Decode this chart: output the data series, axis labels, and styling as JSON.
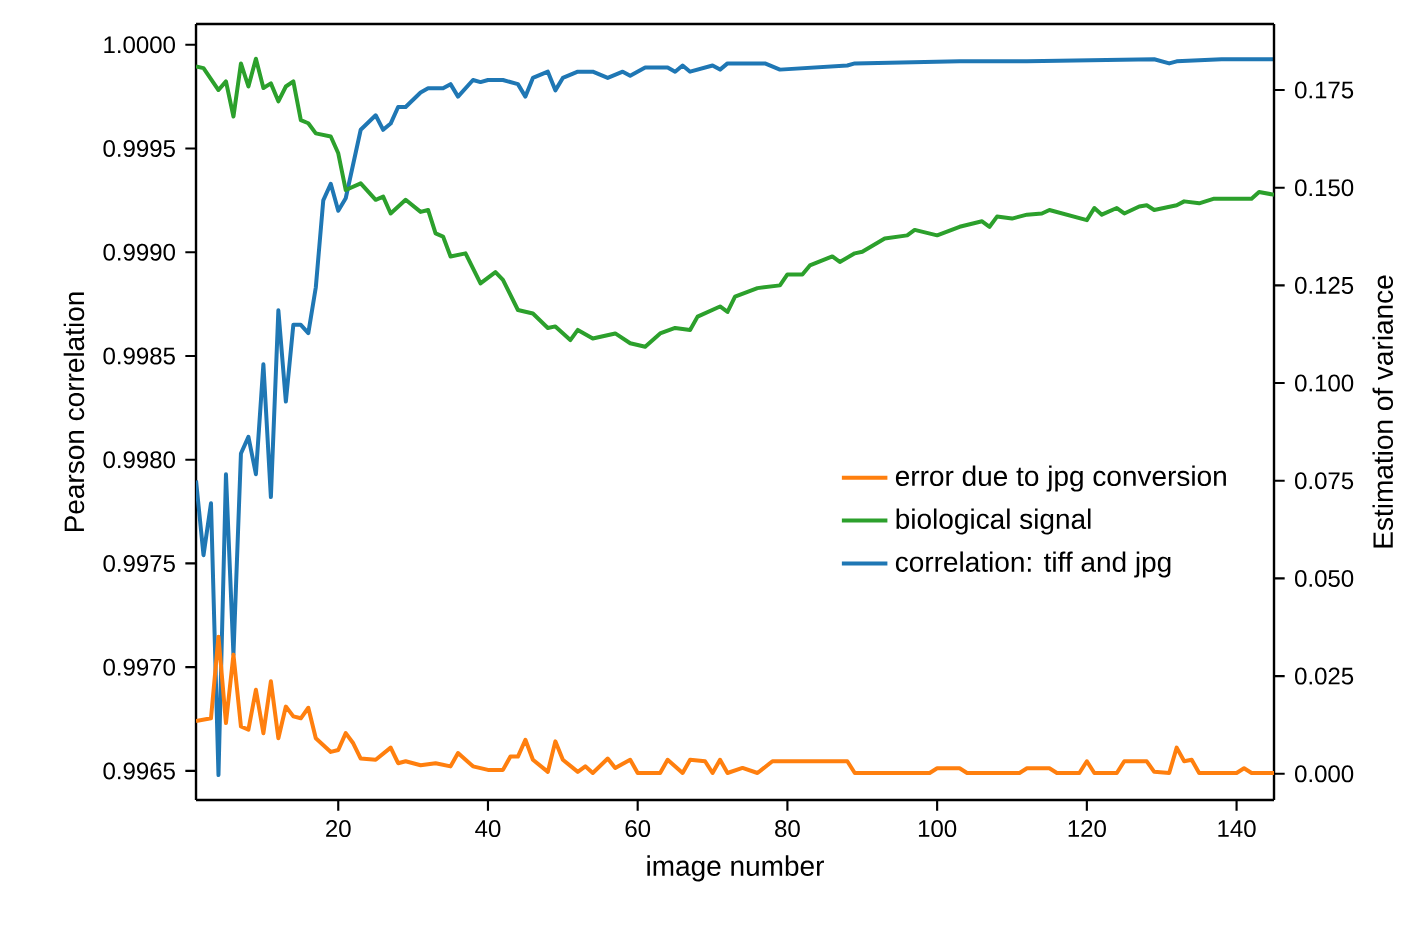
{
  "chart_data": {
    "type": "line",
    "xlabel": "image number",
    "ylabel": "Pearson correlation",
    "y2label": "Estimation of variance",
    "xlim": [
      1,
      145
    ],
    "xticks": [
      20,
      40,
      60,
      80,
      100,
      120,
      140
    ],
    "ylim": [
      0.99636,
      1.0001
    ],
    "yticks": [
      {
        "value": 0.9965,
        "label": "0.9965"
      },
      {
        "value": 0.997,
        "label": "0.9970"
      },
      {
        "value": 0.9975,
        "label": "0.9975"
      },
      {
        "value": 0.998,
        "label": "0.9980"
      },
      {
        "value": 0.9985,
        "label": "0.9985"
      },
      {
        "value": 0.999,
        "label": "0.9990"
      },
      {
        "value": 0.9995,
        "label": "0.9995"
      },
      {
        "value": 1.0,
        "label": "1.0000"
      }
    ],
    "y2lim": [
      -0.0067,
      0.1919
    ],
    "y2ticks": [
      {
        "value": 0,
        "label": "0.000"
      },
      {
        "value": 0.025,
        "label": "0.025"
      },
      {
        "value": 0.05,
        "label": "0.050"
      },
      {
        "value": 0.075,
        "label": "0.075"
      },
      {
        "value": 0.1,
        "label": "0.100"
      },
      {
        "value": 0.125,
        "label": "0.125"
      },
      {
        "value": 0.15,
        "label": "0.150"
      },
      {
        "value": 0.175,
        "label": "0.175"
      }
    ],
    "legend": "right",
    "grid": false,
    "marker": "none",
    "line_style": "solid",
    "series": [
      {
        "name": "error due to jpg conversion",
        "color": "#ff7f0e",
        "axis": "y2",
        "x": [
          1,
          3,
          4,
          5,
          6,
          7,
          8,
          9,
          10,
          11,
          12,
          13,
          14,
          15,
          16,
          17,
          19,
          20,
          21,
          22,
          23,
          25,
          27,
          28,
          29,
          31,
          33,
          35,
          36,
          38,
          40,
          42,
          43,
          44,
          45,
          46,
          48,
          49,
          50,
          52,
          53,
          54,
          56,
          57,
          59,
          60,
          63,
          64,
          66,
          67,
          69,
          70,
          71,
          72,
          74,
          76,
          78,
          88,
          89,
          99,
          100,
          103,
          104,
          111,
          112,
          115,
          116,
          119,
          120,
          121,
          124,
          125,
          128,
          129,
          131,
          132,
          133,
          134,
          135,
          140,
          141,
          142,
          145
        ],
        "values": [
          0.0135,
          0.0142,
          0.0351,
          0.013,
          0.0305,
          0.0121,
          0.0113,
          0.0215,
          0.0104,
          0.0237,
          0.0091,
          0.0172,
          0.0147,
          0.0142,
          0.0169,
          0.0091,
          0.0056,
          0.0061,
          0.0104,
          0.0078,
          0.0039,
          0.0036,
          0.0067,
          0.0027,
          0.0032,
          0.0022,
          0.0027,
          0.0019,
          0.0053,
          0.0019,
          0.001,
          0.001,
          0.0044,
          0.0044,
          0.0087,
          0.0036,
          0.0005,
          0.0083,
          0.0036,
          0.0005,
          0.0019,
          0.0002,
          0.0039,
          0.0015,
          0.0036,
          0.0002,
          0.0002,
          0.0036,
          0.0002,
          0.0036,
          0.0032,
          0.0002,
          0.0036,
          0.0002,
          0.0015,
          0.0002,
          0.0032,
          0.0032,
          0.0002,
          0.0002,
          0.0014,
          0.0014,
          0.0002,
          0.0002,
          0.0014,
          0.0014,
          0.0002,
          0.0002,
          0.0032,
          0.0002,
          0.0002,
          0.0032,
          0.0032,
          0.0005,
          0.0002,
          0.0067,
          0.0032,
          0.0036,
          0.0002,
          0.0002,
          0.0014,
          0.0002,
          0.0002
        ]
      },
      {
        "name": "biological signal",
        "color": "#2ca02c",
        "axis": "y2",
        "x": [
          1,
          2,
          4,
          5,
          6,
          7,
          8,
          9,
          10,
          11,
          12,
          13,
          14,
          15,
          16,
          17,
          19,
          20,
          21,
          23,
          25,
          26,
          27,
          29,
          31,
          32,
          33,
          34,
          35,
          37,
          39,
          41,
          42,
          44,
          46,
          48,
          49,
          51,
          52,
          54,
          57,
          59,
          61,
          63,
          65,
          67,
          68,
          71,
          72,
          73,
          76,
          79,
          80,
          82,
          83,
          86,
          87,
          89,
          90,
          93,
          96,
          97,
          100,
          103,
          106,
          107,
          108,
          110,
          112,
          114,
          115,
          120,
          121,
          122,
          124,
          125,
          127,
          128,
          129,
          132,
          133,
          135,
          137,
          142,
          143,
          145
        ],
        "values": [
          0.181,
          0.1806,
          0.175,
          0.1772,
          0.1682,
          0.1818,
          0.1759,
          0.183,
          0.1755,
          0.1767,
          0.1721,
          0.1759,
          0.1772,
          0.1673,
          0.1665,
          0.1639,
          0.1631,
          0.1588,
          0.1494,
          0.1511,
          0.1469,
          0.1477,
          0.1434,
          0.1469,
          0.1438,
          0.1443,
          0.1383,
          0.1375,
          0.1324,
          0.1332,
          0.1255,
          0.1284,
          0.1264,
          0.1187,
          0.1178,
          0.1141,
          0.1145,
          0.111,
          0.1136,
          0.1114,
          0.1127,
          0.1102,
          0.1093,
          0.1127,
          0.1141,
          0.1136,
          0.117,
          0.1196,
          0.1182,
          0.1221,
          0.1243,
          0.125,
          0.1278,
          0.1278,
          0.1301,
          0.1324,
          0.131,
          0.1332,
          0.1336,
          0.137,
          0.1378,
          0.1392,
          0.1378,
          0.14,
          0.1414,
          0.14,
          0.1426,
          0.1421,
          0.1431,
          0.1434,
          0.1443,
          0.1417,
          0.1448,
          0.1431,
          0.1448,
          0.1434,
          0.1452,
          0.1455,
          0.1443,
          0.1455,
          0.1465,
          0.146,
          0.1472,
          0.1472,
          0.1489,
          0.1482
        ]
      },
      {
        "name": "correlation: tiff and jpg",
        "color": "#1f77b4",
        "axis": "y",
        "x": [
          1,
          2,
          3,
          4,
          5,
          6,
          7,
          8,
          9,
          10,
          11,
          12,
          13,
          14,
          15,
          16,
          17,
          18,
          19,
          20,
          21,
          23,
          25,
          26,
          27,
          28,
          29,
          31,
          32,
          34,
          35,
          36,
          38,
          39,
          40,
          42,
          44,
          45,
          46,
          48,
          49,
          50,
          52,
          54,
          56,
          58,
          59,
          61,
          64,
          65,
          66,
          67,
          70,
          71,
          72,
          77,
          79,
          88,
          89,
          103,
          112,
          129,
          131,
          132,
          138,
          145
        ],
        "values": [
          0.9979,
          0.99754,
          0.99779,
          0.99648,
          0.99793,
          0.99706,
          0.99803,
          0.99811,
          0.99793,
          0.99846,
          0.99782,
          0.99872,
          0.99828,
          0.99865,
          0.99865,
          0.99861,
          0.99883,
          0.99925,
          0.99933,
          0.9992,
          0.99926,
          0.99959,
          0.99966,
          0.99959,
          0.99962,
          0.9997,
          0.9997,
          0.99977,
          0.99979,
          0.99979,
          0.99981,
          0.99975,
          0.99983,
          0.99982,
          0.99983,
          0.99983,
          0.99981,
          0.99975,
          0.99984,
          0.99987,
          0.99978,
          0.99984,
          0.99987,
          0.99987,
          0.99984,
          0.99987,
          0.99985,
          0.99989,
          0.99989,
          0.99987,
          0.9999,
          0.99987,
          0.9999,
          0.99988,
          0.99991,
          0.99991,
          0.99988,
          0.9999,
          0.99991,
          0.99992,
          0.99992,
          0.99993,
          0.99991,
          0.99992,
          0.99993,
          0.99993
        ]
      }
    ]
  }
}
